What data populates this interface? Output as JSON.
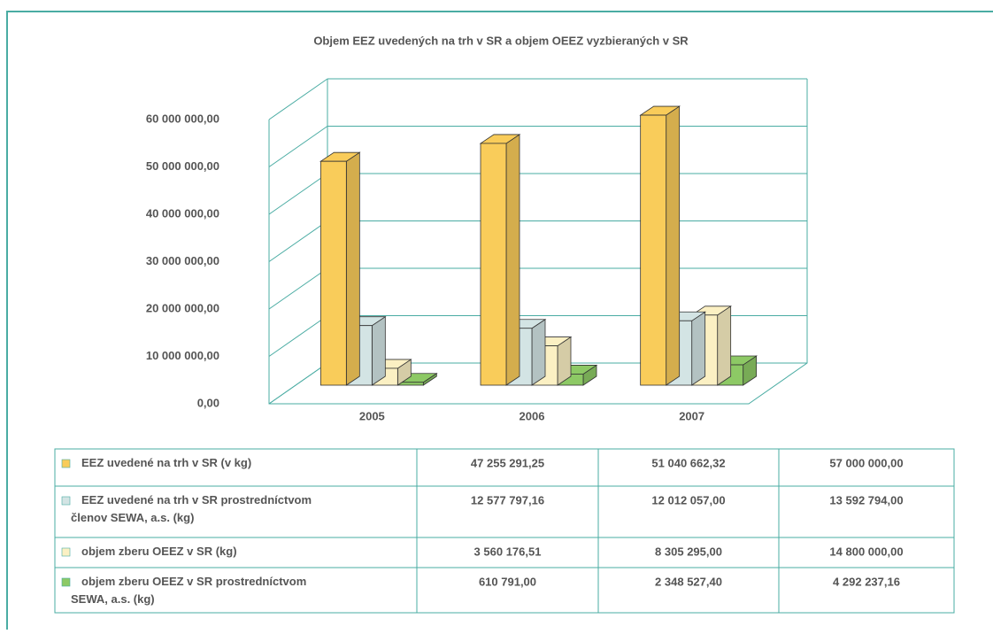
{
  "chart_data": {
    "type": "bar3d",
    "title": "Objem EEZ uvedených na trh v SR a objem OEEZ vyzbieraných v SR",
    "categories": [
      "2005",
      "2006",
      "2007"
    ],
    "series": [
      {
        "name": "EEZ uvedené na trh v SR (v kg)",
        "color": "#f9cc5a",
        "values": [
          47255291.25,
          51040662.32,
          57000000.0
        ],
        "value_labels": [
          "47 255 291,25",
          "51 040 662,32",
          "57 000 000,00"
        ]
      },
      {
        "name": "EEZ uvedené na trh v SR prostredníctvom členov SEWA, a.s. (kg)",
        "color": "#d3e4e4",
        "values": [
          12577797.16,
          12012057.0,
          13592794.0
        ],
        "value_labels": [
          "12 577 797,16",
          "12 012 057,00",
          "13 592 794,00"
        ]
      },
      {
        "name": "objem zberu OEEZ v SR (kg)",
        "color": "#fbf0c3",
        "values": [
          3560176.51,
          8305295.0,
          14800000.0
        ],
        "value_labels": [
          "3 560 176,51",
          "8 305 295,00",
          "14 800 000,00"
        ]
      },
      {
        "name": "objem zberu OEEZ v SR prostredníctvom SEWA, a.s. (kg)",
        "color": "#8dc965",
        "values": [
          610791.0,
          2348527.4,
          4292237.16
        ],
        "value_labels": [
          "610 791,00",
          "2 348 527,40",
          "4 292 237,16"
        ]
      }
    ],
    "ylim": [
      0,
      60000000
    ],
    "yticks": [
      {
        "value": 0,
        "label": "0,00"
      },
      {
        "value": 10000000,
        "label": "10 000 000,00"
      },
      {
        "value": 20000000,
        "label": "20 000 000,00"
      },
      {
        "value": 30000000,
        "label": "30 000 000,00"
      },
      {
        "value": 40000000,
        "label": "40 000 000,00"
      },
      {
        "value": 50000000,
        "label": "50 000 000,00"
      },
      {
        "value": 60000000,
        "label": "60 000 000,00"
      }
    ],
    "grid": true
  }
}
